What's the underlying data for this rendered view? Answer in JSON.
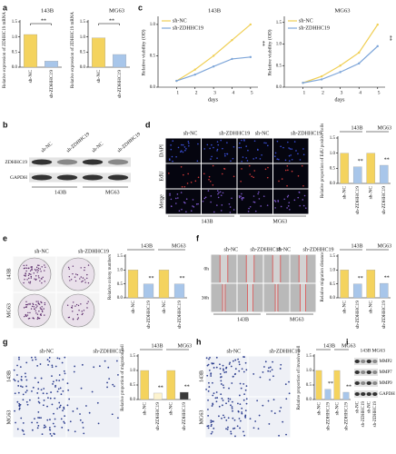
{
  "panel_labels": [
    "a",
    "b",
    "c",
    "d",
    "e",
    "f",
    "g",
    "h",
    "i"
  ],
  "chart_data": [
    {
      "type": "bar",
      "title": "143B",
      "y_label": "Relative expression of ZDHHC19 mRNA",
      "categories": [
        "sh-NC",
        "sh-ZDHHC19"
      ],
      "values": [
        1.08,
        0.2
      ],
      "colors": [
        "#f4d35e",
        "#a8c6ea"
      ],
      "ylim": [
        0,
        1.5
      ],
      "yticks": [
        {
          "value": 0,
          "label": "0.0"
        },
        0.5,
        {
          "value": 1,
          "label": "1.0"
        },
        1.5
      ],
      "significance": "**"
    },
    {
      "type": "bar",
      "title": "MG63",
      "y_label": "Relative expression of ZDHHC19 mRNA",
      "categories": [
        "sh-NC",
        "sh-ZDHHC19"
      ],
      "values": [
        0.97,
        0.42
      ],
      "colors": [
        "#f4d35e",
        "#a8c6ea"
      ],
      "ylim": [
        0,
        1.5
      ],
      "yticks": [
        {
          "value": 0,
          "label": "0.0"
        },
        0.5,
        {
          "value": 1,
          "label": "1.0"
        },
        1.5
      ],
      "significance": "**"
    },
    {
      "type": "line",
      "title": "143B",
      "x_label": "days",
      "y_label": "Relative viability (OD)",
      "x": [
        1,
        2,
        3,
        4,
        5
      ],
      "xlim": [
        0,
        5.4
      ],
      "xticks": [
        1,
        2,
        3,
        4,
        5
      ],
      "ylim": [
        0,
        1.1
      ],
      "yticks": [
        {
          "value": 0,
          "label": "0.0"
        },
        0.5,
        {
          "value": 1,
          "label": "1.0"
        }
      ],
      "annotation": "**",
      "series": [
        {
          "name": "sh-NC",
          "color": "#f0cf55",
          "values": [
            0.1,
            0.28,
            0.5,
            0.75,
            1.0
          ]
        },
        {
          "name": "sh-ZDHHC19",
          "color": "#7ea6d9",
          "values": [
            0.1,
            0.2,
            0.33,
            0.45,
            0.48
          ]
        }
      ]
    },
    {
      "type": "line",
      "title": "MG63",
      "x_label": "days",
      "y_label": "Relative viability (OD)",
      "x": [
        1,
        2,
        3,
        4,
        5
      ],
      "xlim": [
        0,
        5.4
      ],
      "xticks": [
        1,
        2,
        3,
        4,
        5
      ],
      "ylim": [
        0,
        1.6
      ],
      "yticks": [
        {
          "value": 0,
          "label": "0.0"
        },
        0.5,
        {
          "value": 1,
          "label": "1.0"
        },
        1.5
      ],
      "annotation": "**",
      "series": [
        {
          "name": "sh-NC",
          "color": "#f0cf55",
          "values": [
            0.1,
            0.25,
            0.5,
            0.8,
            1.45
          ]
        },
        {
          "name": "sh-ZDHHC19",
          "color": "#7ea6d9",
          "values": [
            0.1,
            0.18,
            0.35,
            0.55,
            0.95
          ]
        }
      ]
    },
    {
      "type": "bar",
      "y_label": "Relative proportion of EdU positive cells",
      "groups": [
        "143B",
        "MG63"
      ],
      "categories": [
        "sh-NC",
        "sh-ZDHHC19",
        "sh-NC",
        "sh-ZDHHC19"
      ],
      "values": [
        1.0,
        0.55,
        1.0,
        0.6
      ],
      "colors": [
        "#f4d35e",
        "#a8c6ea",
        "#f4d35e",
        "#a8c6ea"
      ],
      "ylim": [
        0,
        1.5
      ],
      "yticks": [
        {
          "value": 0,
          "label": "0.0"
        },
        0.5,
        {
          "value": 1,
          "label": "1.0"
        },
        1.5
      ],
      "significance": [
        null,
        "**",
        null,
        "**"
      ]
    },
    {
      "type": "bar",
      "y_label": "Relative colony numbers",
      "groups": [
        "143B",
        "MG63"
      ],
      "categories": [
        "sh-NC",
        "sh-ZDHHC19",
        "sh-NC",
        "sh-ZDHHC19"
      ],
      "values": [
        1.0,
        0.5,
        1.0,
        0.5
      ],
      "colors": [
        "#f4d35e",
        "#a8c6ea",
        "#f4d35e",
        "#a8c6ea"
      ],
      "ylim": [
        0,
        1.5
      ],
      "yticks": [
        {
          "value": 0,
          "label": "0.0"
        },
        0.5,
        {
          "value": 1,
          "label": "1.0"
        },
        1.5
      ],
      "significance": [
        null,
        "**",
        null,
        "**"
      ]
    },
    {
      "type": "bar",
      "y_label": "Relative migration distance",
      "groups": [
        "143B",
        "MG63"
      ],
      "categories": [
        "sh-NC",
        "sh-ZDHHC19",
        "sh-NC",
        "sh-ZDHHC19"
      ],
      "values": [
        1.0,
        0.5,
        1.0,
        0.52
      ],
      "colors": [
        "#f4d35e",
        "#a8c6ea",
        "#f4d35e",
        "#a8c6ea"
      ],
      "ylim": [
        0,
        1.5
      ],
      "yticks": [
        {
          "value": 0,
          "label": "0.0"
        },
        0.5,
        {
          "value": 1,
          "label": "1.0"
        },
        1.5
      ],
      "significance": [
        null,
        "**",
        null,
        "**"
      ]
    },
    {
      "type": "bar",
      "y_label": "Relative proportion of migration cell",
      "groups": [
        "143B",
        "MG63"
      ],
      "categories": [
        "sh-NC",
        "sh-ZDHHC19",
        "sh-NC",
        "sh-ZDHHC19"
      ],
      "values": [
        1.0,
        0.22,
        1.0,
        0.25
      ],
      "colors": [
        "#f4d35e",
        "#fdf3cf",
        "#f4d35e",
        "#3a3a3a"
      ],
      "ylim": [
        0,
        1.5
      ],
      "yticks": [
        {
          "value": 0,
          "label": "0.0"
        },
        0.5,
        {
          "value": 1,
          "label": "1.0"
        },
        1.5
      ],
      "significance": [
        null,
        "**",
        null,
        "**"
      ]
    },
    {
      "type": "bar",
      "y_label": "Relative proportion of invasive cell",
      "groups": [
        "143B",
        "MG63"
      ],
      "categories": [
        "sh-NC",
        "sh-ZDHHC19",
        "sh-NC",
        "sh-ZDHHC19"
      ],
      "values": [
        1.0,
        0.35,
        1.0,
        0.25
      ],
      "colors": [
        "#f4d35e",
        "#a8c6ea",
        "#f4d35e",
        "#a8c6ea"
      ],
      "ylim": [
        0,
        1.5
      ],
      "yticks": [
        {
          "value": 0,
          "label": "0.0"
        },
        0.5,
        {
          "value": 1,
          "label": "1.0"
        },
        1.5
      ],
      "significance": [
        null,
        "**",
        null,
        "**"
      ]
    }
  ],
  "figures": {
    "b": {
      "columns": [
        "sh-NC",
        "sh-ZDHHC19",
        "sh-NC",
        "sh-ZDHHC19"
      ],
      "rows": [
        "ZDHHC19",
        "GAPDH"
      ],
      "groups": [
        "143B",
        "MG63"
      ]
    },
    "d": {
      "columns": [
        "sh-NC",
        "sh-ZDHHC19",
        "sh-NC",
        "sh-ZDHHC19"
      ],
      "rows": [
        "DAPI",
        "EdU",
        "Merge"
      ],
      "groups": [
        "143B",
        "MG63"
      ]
    },
    "e": {
      "columns": [
        "sh-NC",
        "sh-ZDHHC19"
      ],
      "rows": [
        "143B",
        "MG63"
      ]
    },
    "f": {
      "columns": [
        "sh-NC",
        "sh-ZDHHC19",
        "sh-NC",
        "sh-ZDHHC19"
      ],
      "rows": [
        "0h",
        "36h"
      ],
      "groups": [
        "143B",
        "MG63"
      ]
    },
    "g": {
      "columns": [
        "sh-NC",
        "sh-ZDHHC19"
      ],
      "rows": [
        "143B",
        "MG63"
      ]
    },
    "h": {
      "columns": [
        "sh-NC",
        "sh-ZDHHC19"
      ],
      "rows": [
        "143B",
        "MG63"
      ]
    },
    "i": {
      "groups": [
        "143B",
        "MG63"
      ],
      "rows": [
        "MMP2",
        "MMP7",
        "MMP9",
        "GAPDH"
      ],
      "columns": [
        "sh-NC",
        "sh-ZDHHC19",
        "sh-NC",
        "sh-ZDHHC19"
      ]
    }
  }
}
